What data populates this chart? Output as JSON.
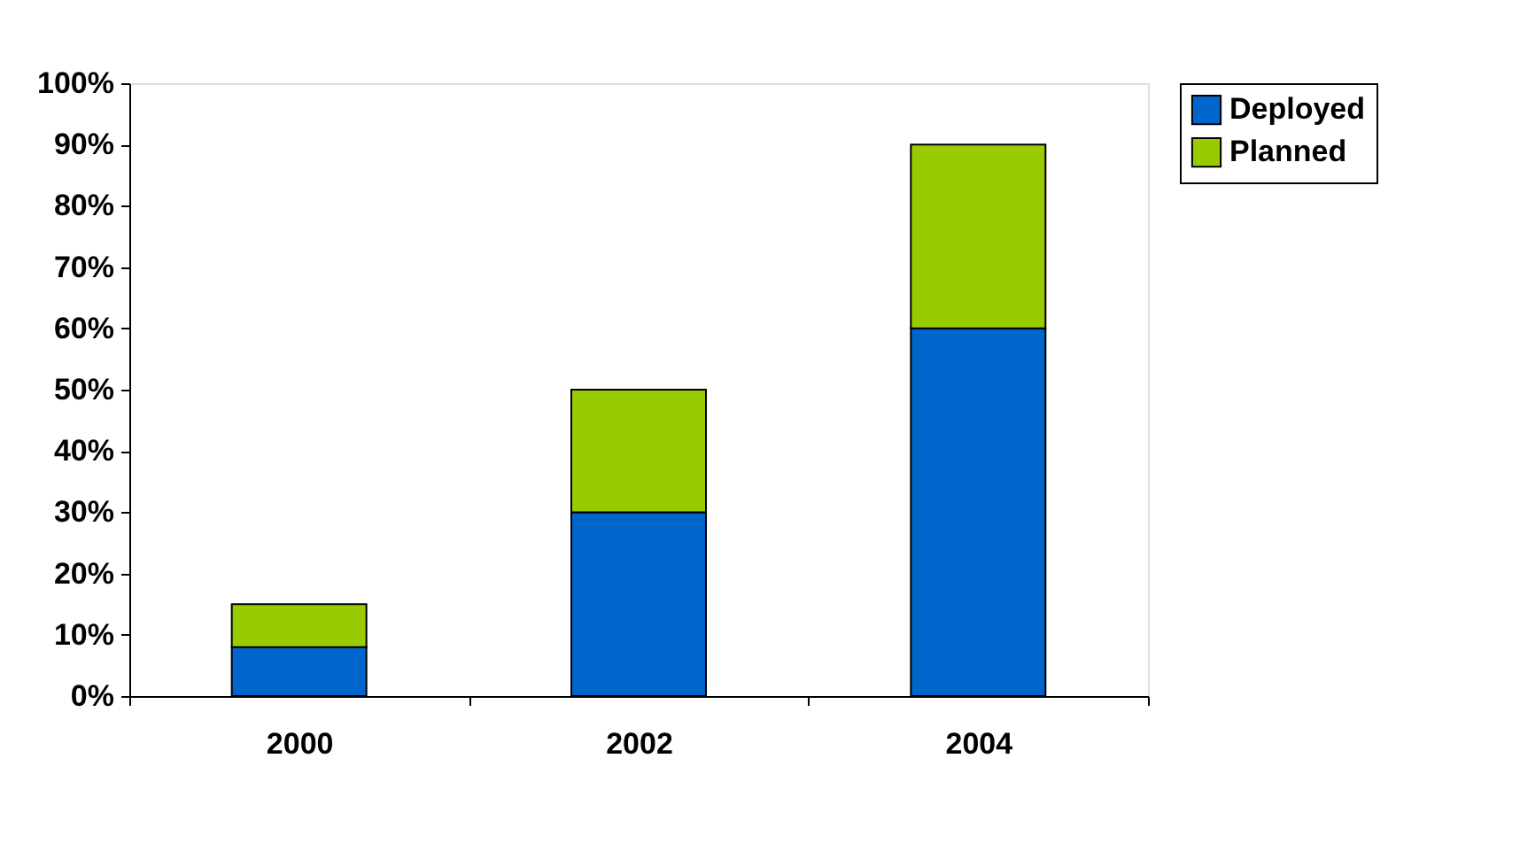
{
  "chart_data": {
    "type": "bar",
    "stacked": true,
    "categories": [
      "2000",
      "2002",
      "2004"
    ],
    "series": [
      {
        "name": "Deployed",
        "color": "#0066cc",
        "values": [
          8,
          30,
          60
        ]
      },
      {
        "name": "Planned",
        "color": "#99cc00",
        "values": [
          7,
          20,
          30
        ]
      }
    ],
    "ylim": [
      0,
      100
    ],
    "yticks": [
      {
        "value": 0,
        "label": "0%"
      },
      {
        "value": 10,
        "label": "10%"
      },
      {
        "value": 20,
        "label": "20%"
      },
      {
        "value": 30,
        "label": "30%"
      },
      {
        "value": 40,
        "label": "40%"
      },
      {
        "value": 50,
        "label": "50%"
      },
      {
        "value": 60,
        "label": "60%"
      },
      {
        "value": 70,
        "label": "70%"
      },
      {
        "value": 80,
        "label": "80%"
      },
      {
        "value": 90,
        "label": "90%"
      },
      {
        "value": 100,
        "label": "100%"
      }
    ],
    "grid": false,
    "legend": "right"
  }
}
